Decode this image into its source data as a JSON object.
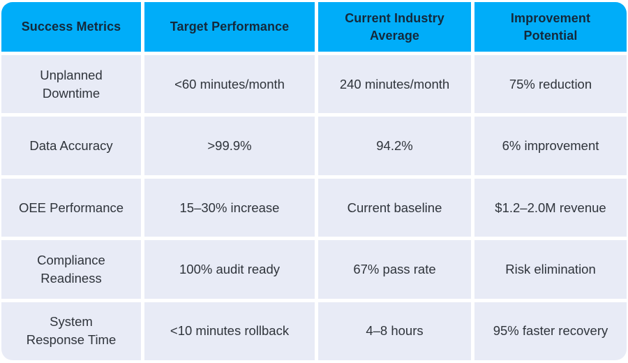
{
  "colors": {
    "header_bg": "#00ADF9",
    "header_text": "#14293B",
    "row_bg": "#E8EBF6",
    "body_text": "#2F343B",
    "gap": "#FFFFFF"
  },
  "table": {
    "headers": [
      "Success Metrics",
      "Target Performance",
      "Current Industry\nAverage",
      "Improvement\nPotential"
    ],
    "rows": [
      [
        "Unplanned\nDowntime",
        "<60 minutes/month",
        "240 minutes/month",
        "75% reduction"
      ],
      [
        "Data Accuracy",
        ">99.9%",
        "94.2%",
        "6% improvement"
      ],
      [
        "OEE Performance",
        "15–30% increase",
        "Current baseline",
        "$1.2–2.0M revenue"
      ],
      [
        "Compliance\nReadiness",
        "100% audit ready",
        "67% pass rate",
        "Risk elimination"
      ],
      [
        "System\nResponse Time",
        "<10 minutes rollback",
        "4–8 hours",
        "95% faster recovery"
      ]
    ]
  }
}
